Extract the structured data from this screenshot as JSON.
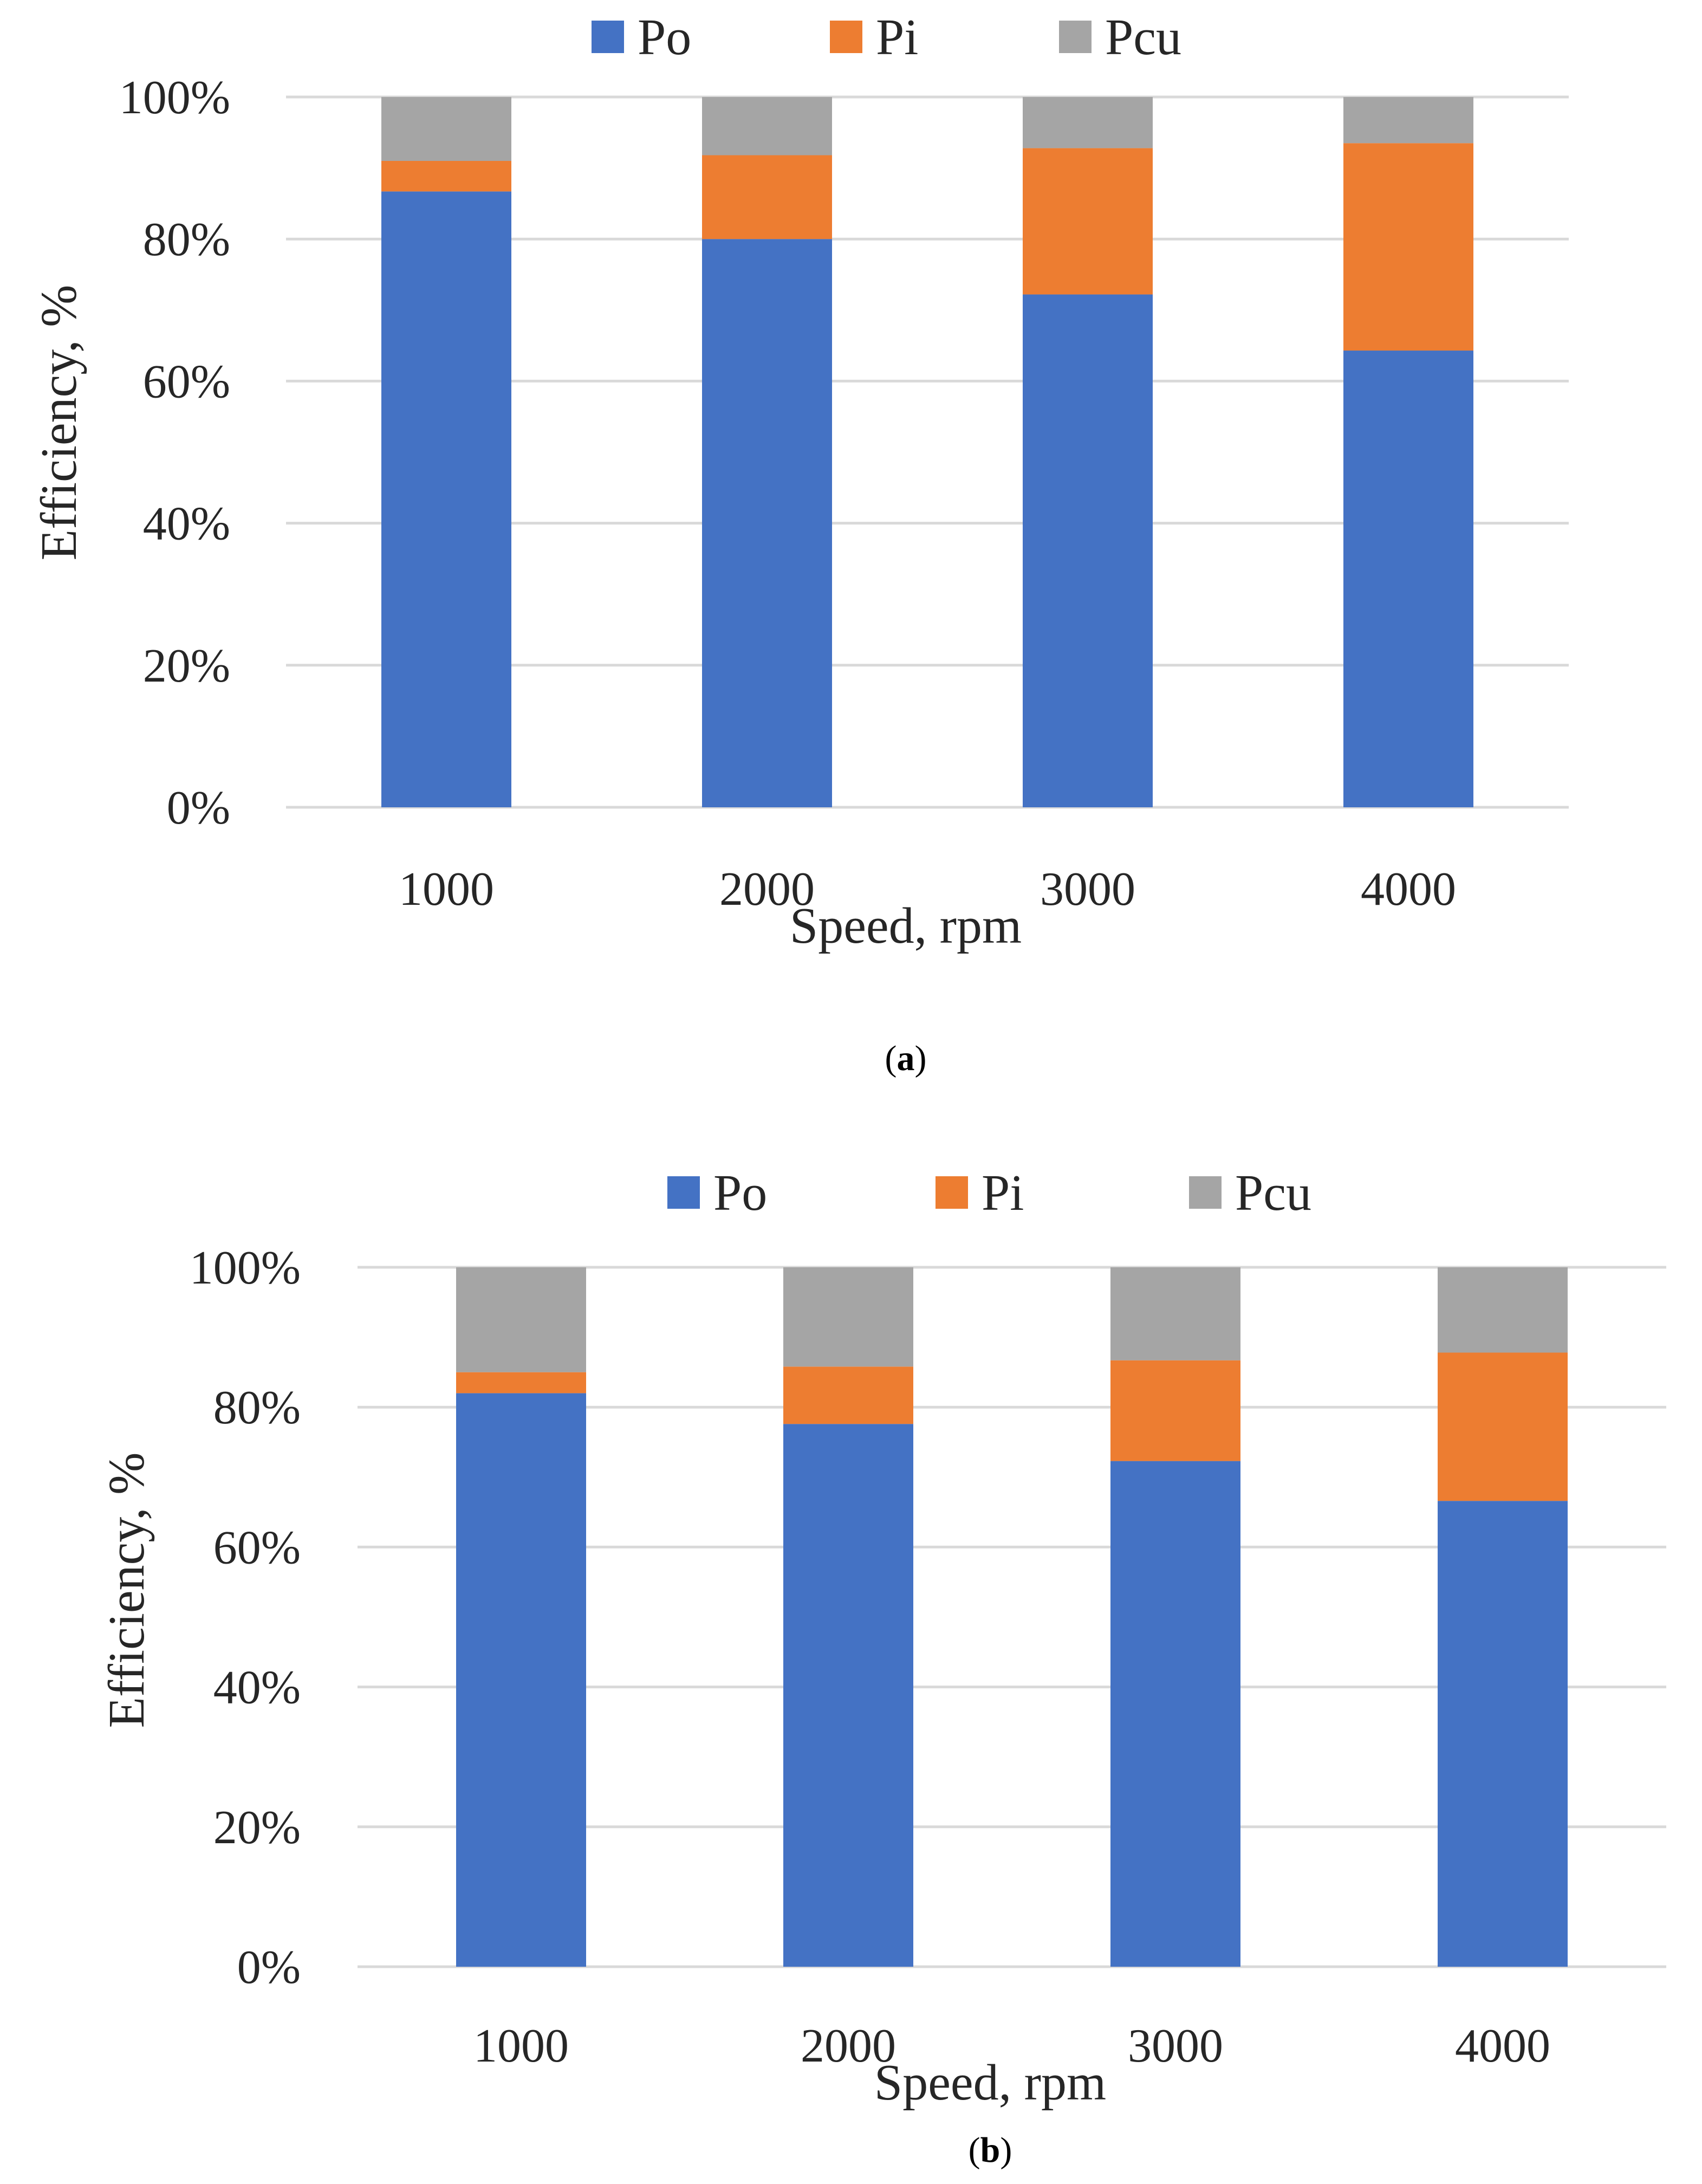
{
  "chart_data": [
    {
      "type": "bar",
      "stacked": true,
      "caption_prefix": "(",
      "caption_letter": "a",
      "caption_suffix": ")",
      "categories": [
        "1000",
        "2000",
        "3000",
        "4000"
      ],
      "series": [
        {
          "name": "Po",
          "color": "#4472c4",
          "values": [
            86.7,
            80.0,
            72.2,
            64.3
          ]
        },
        {
          "name": "Pi",
          "color": "#ed7d31",
          "values": [
            4.3,
            11.8,
            20.6,
            29.2
          ]
        },
        {
          "name": "Pcu",
          "color": "#a5a5a5",
          "values": [
            9.0,
            8.2,
            7.2,
            6.5
          ]
        }
      ],
      "xlabel": "Speed, rpm",
      "ylabel": "Efficiency, %",
      "ylim": [
        0,
        100
      ],
      "yticks": [
        "0%",
        "20%",
        "40%",
        "60%",
        "80%",
        "100%"
      ],
      "legend_position": "top",
      "grid": true
    },
    {
      "type": "bar",
      "stacked": true,
      "caption_prefix": "(",
      "caption_letter": "b",
      "caption_suffix": ")",
      "categories": [
        "1000",
        "2000",
        "3000",
        "4000"
      ],
      "series": [
        {
          "name": "Po",
          "color": "#4472c4",
          "values": [
            82.0,
            77.6,
            72.3,
            66.6
          ]
        },
        {
          "name": "Pi",
          "color": "#ed7d31",
          "values": [
            3.0,
            8.2,
            14.4,
            21.2
          ]
        },
        {
          "name": "Pcu",
          "color": "#a5a5a5",
          "values": [
            15.0,
            14.2,
            13.3,
            12.2
          ]
        }
      ],
      "xlabel": "Speed, rpm",
      "ylabel": "Efficiency, %",
      "ylim": [
        0,
        100
      ],
      "yticks": [
        "0%",
        "20%",
        "40%",
        "60%",
        "80%",
        "100%"
      ],
      "legend_position": "top",
      "grid": true
    }
  ]
}
